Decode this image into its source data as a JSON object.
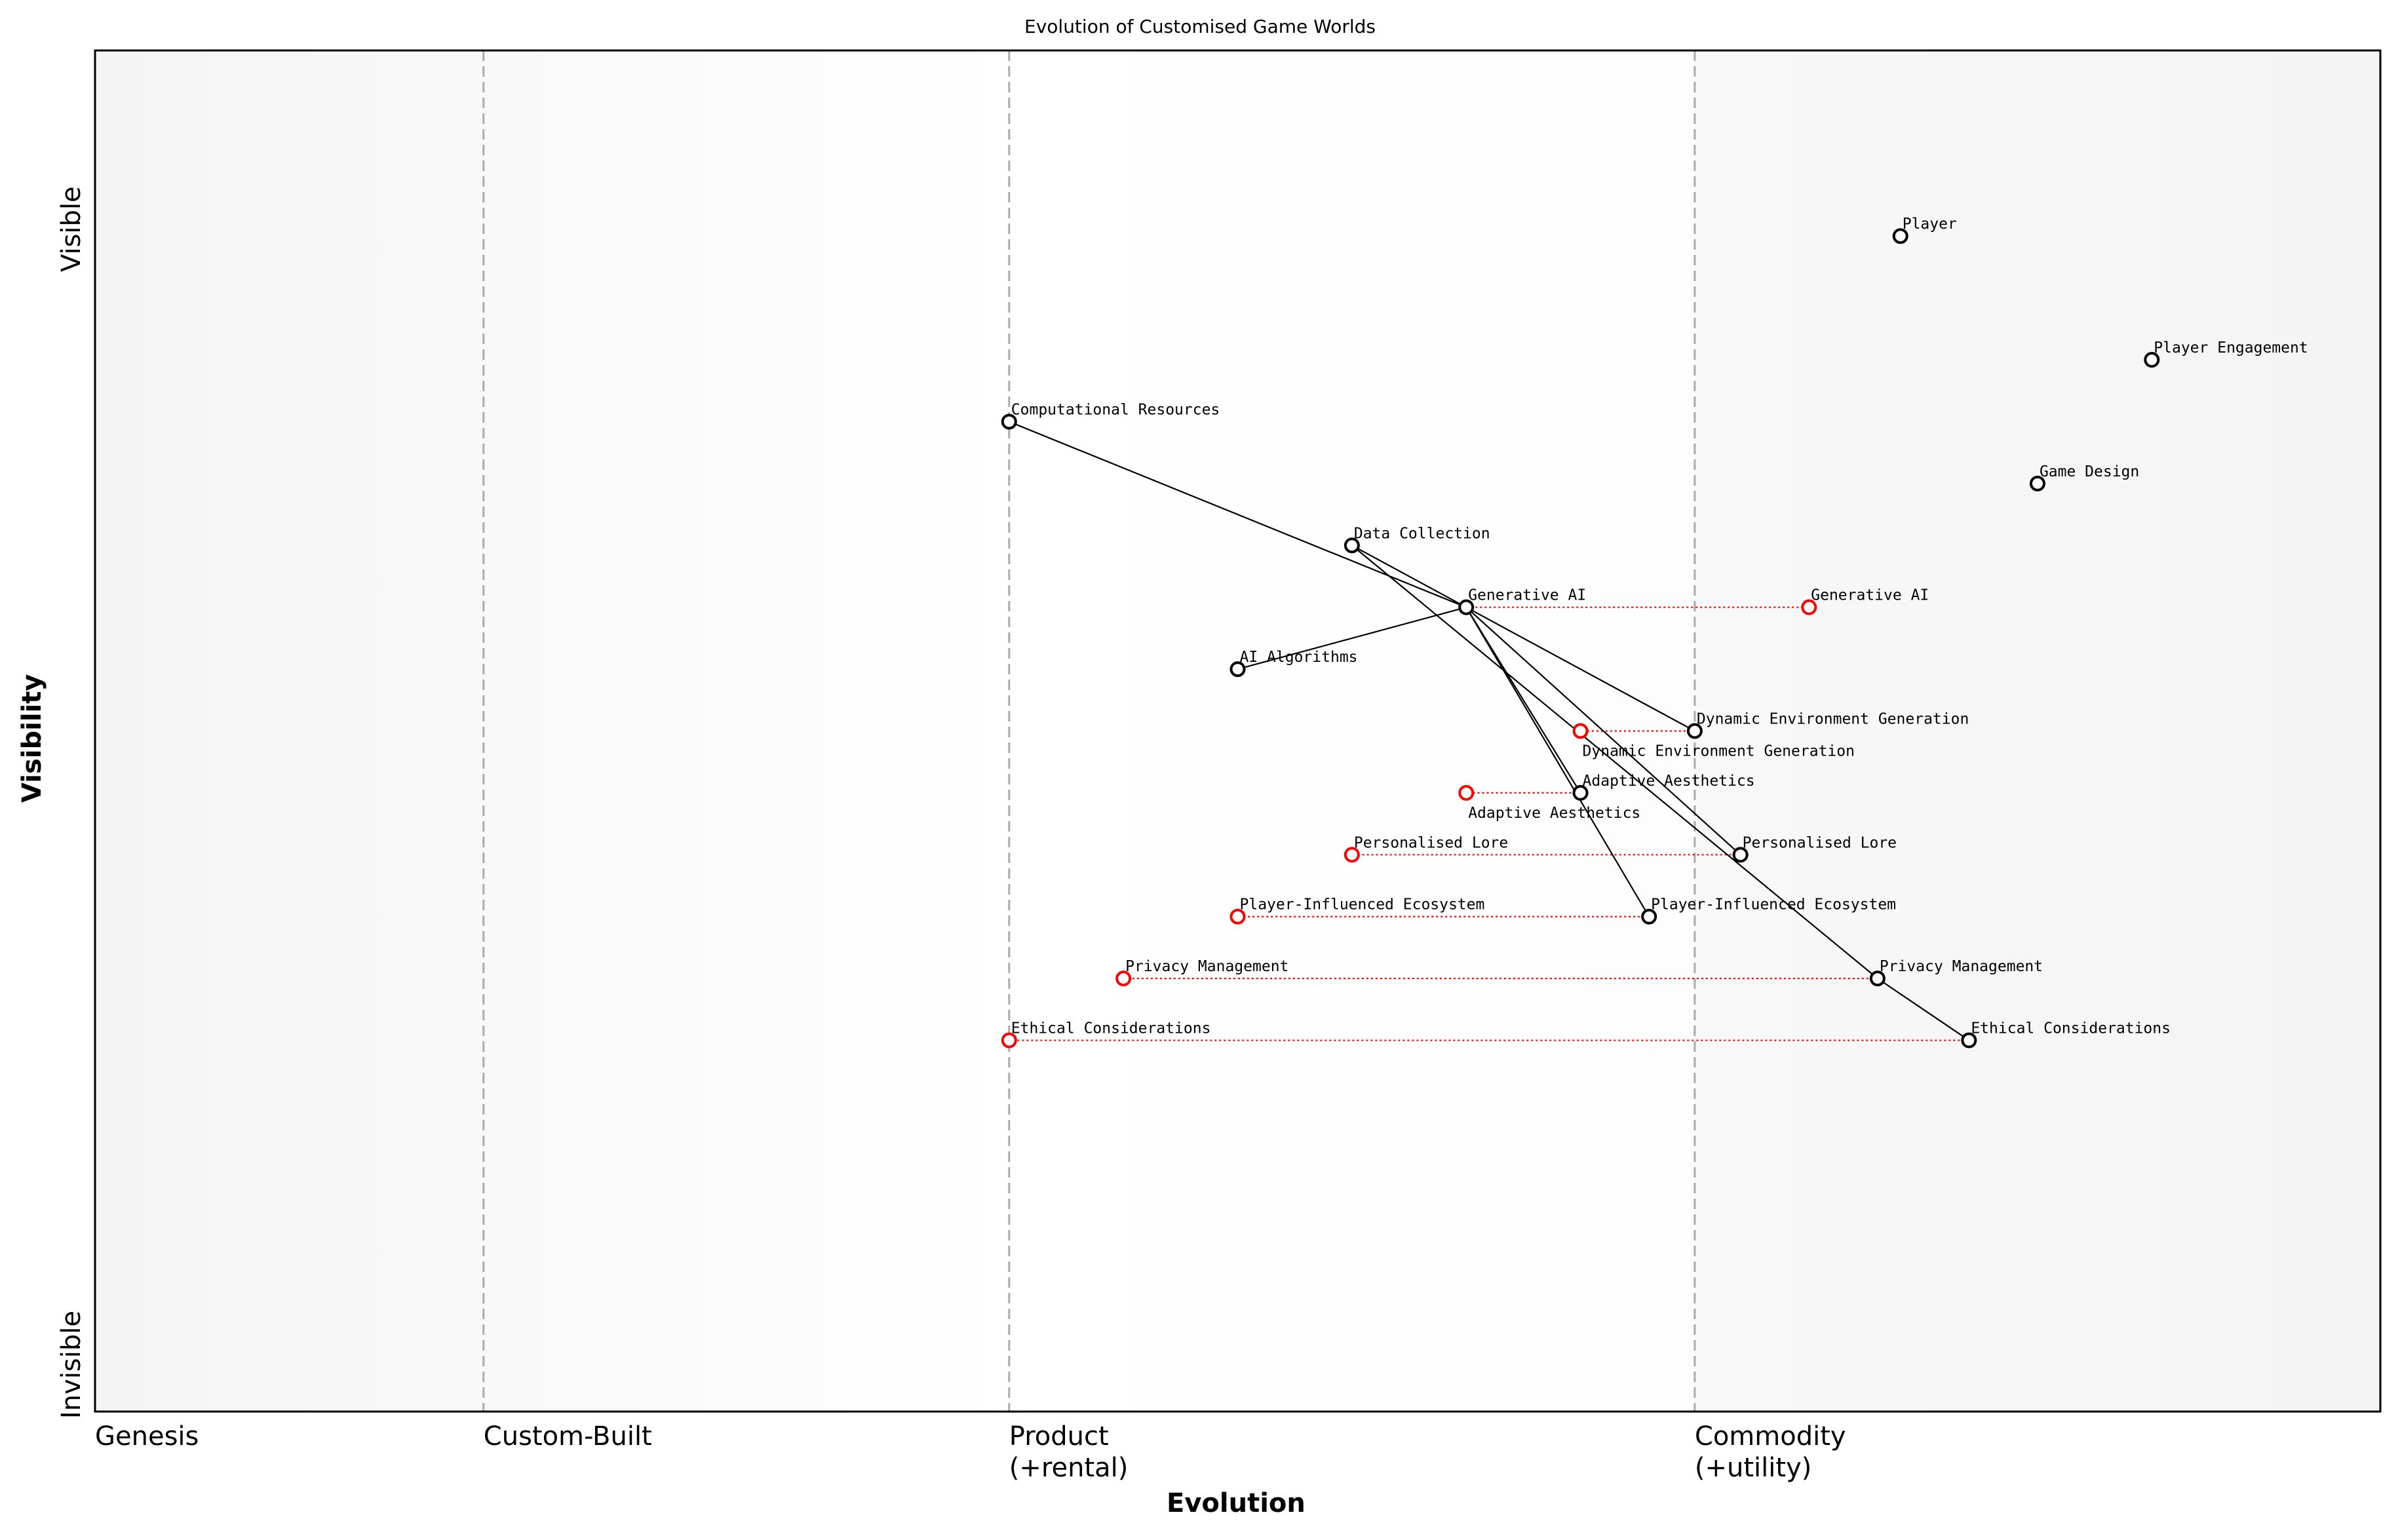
{
  "chart_data": {
    "type": "wardley-map",
    "title": "Evolution of Customised Game Worlds",
    "xlabel": "Evolution",
    "ylabel": "Visibility",
    "y_ticks": {
      "top": "Visible",
      "bottom": "Invisible"
    },
    "stages": [
      {
        "label": "Genesis",
        "evolution": 0.0
      },
      {
        "label": "Custom-Built",
        "evolution": 0.17
      },
      {
        "label": "Product\n(+rental)",
        "evolution": 0.4
      },
      {
        "label": "Commodity\n(+utility)",
        "evolution": 0.7
      }
    ],
    "xlim": [
      0,
      1
    ],
    "ylim": [
      0,
      1.1
    ],
    "colors": {
      "component": "#000000",
      "evolved": "#ff0000",
      "stage_line": "#aaaaaa"
    },
    "components": [
      {
        "name": "Player",
        "visibility": 0.95,
        "evolution": 0.79
      },
      {
        "name": "Player Engagement",
        "visibility": 0.85,
        "evolution": 0.9
      },
      {
        "name": "Game Design",
        "visibility": 0.75,
        "evolution": 0.85
      },
      {
        "name": "Computational Resources",
        "visibility": 0.8,
        "evolution": 0.4
      },
      {
        "name": "Data Collection",
        "visibility": 0.7,
        "evolution": 0.55
      },
      {
        "name": "Generative AI",
        "visibility": 0.65,
        "evolution": 0.6,
        "evolve_to": 0.75
      },
      {
        "name": "AI Algorithms",
        "visibility": 0.6,
        "evolution": 0.5
      },
      {
        "name": "Dynamic Environment Generation",
        "visibility": 0.55,
        "evolution": 0.7,
        "evolve_to": 0.65
      },
      {
        "name": "Adaptive Aesthetics",
        "visibility": 0.5,
        "evolution": 0.65,
        "evolve_to": 0.6
      },
      {
        "name": "Personalised Lore",
        "visibility": 0.45,
        "evolution": 0.72,
        "evolve_to": 0.55
      },
      {
        "name": "Player-Influenced Ecosystem",
        "visibility": 0.4,
        "evolution": 0.68,
        "evolve_to": 0.5
      },
      {
        "name": "Privacy Management",
        "visibility": 0.35,
        "evolution": 0.78,
        "evolve_to": 0.45
      },
      {
        "name": "Ethical Considerations",
        "visibility": 0.3,
        "evolution": 0.82,
        "evolve_to": 0.4
      }
    ],
    "links": [
      [
        "Computational Resources",
        "Generative AI"
      ],
      [
        "AI Algorithms",
        "Generative AI"
      ],
      [
        "Data Collection",
        "Generative AI"
      ],
      [
        "Data Collection",
        "Privacy Management"
      ],
      [
        "Generative AI",
        "Dynamic Environment Generation"
      ],
      [
        "Generative AI",
        "Personalised Lore"
      ],
      [
        "Generative AI",
        "Adaptive Aesthetics"
      ],
      [
        "Generative AI",
        "Player-Influenced Ecosystem"
      ],
      [
        "Privacy Management",
        "Ethical Considerations"
      ]
    ]
  }
}
